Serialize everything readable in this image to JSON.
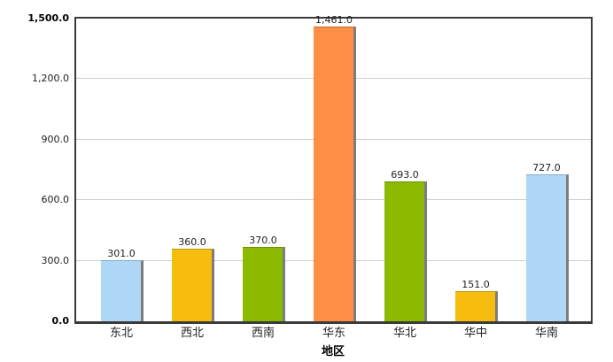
{
  "chart_data": {
    "type": "bar",
    "title": "",
    "xlabel": "地区",
    "ylabel": "",
    "categories": [
      "东北",
      "西北",
      "西南",
      "华东",
      "华北",
      "华中",
      "华南"
    ],
    "values": [
      301.0,
      360.0,
      370.0,
      1461.0,
      693.0,
      151.0,
      727.0
    ],
    "value_labels": [
      "301.0",
      "360.0",
      "370.0",
      "1,461.0",
      "693.0",
      "151.0",
      "727.0"
    ],
    "bar_colors": [
      "#AFD8F8",
      "#F6BD0F",
      "#8BBA00",
      "#FF8E46",
      "#8BBA00",
      "#F6BD0F",
      "#AFD8F8"
    ],
    "ylim": [
      0,
      1500
    ],
    "yticks": [
      0,
      300,
      600,
      900,
      1200,
      1500
    ],
    "ytick_labels": [
      "0.0",
      "300.0",
      "600.0",
      "900.0",
      "1,200.0",
      "1,500.0"
    ],
    "grid": true,
    "legend": false,
    "legend_position": "none"
  },
  "colors": {
    "background": "#ffffff",
    "plot_border": "#3b3b3b",
    "gridline": "#cfcfcf",
    "bar_shadow": "#7d7d7d",
    "label_text": "#1f1f1f"
  }
}
